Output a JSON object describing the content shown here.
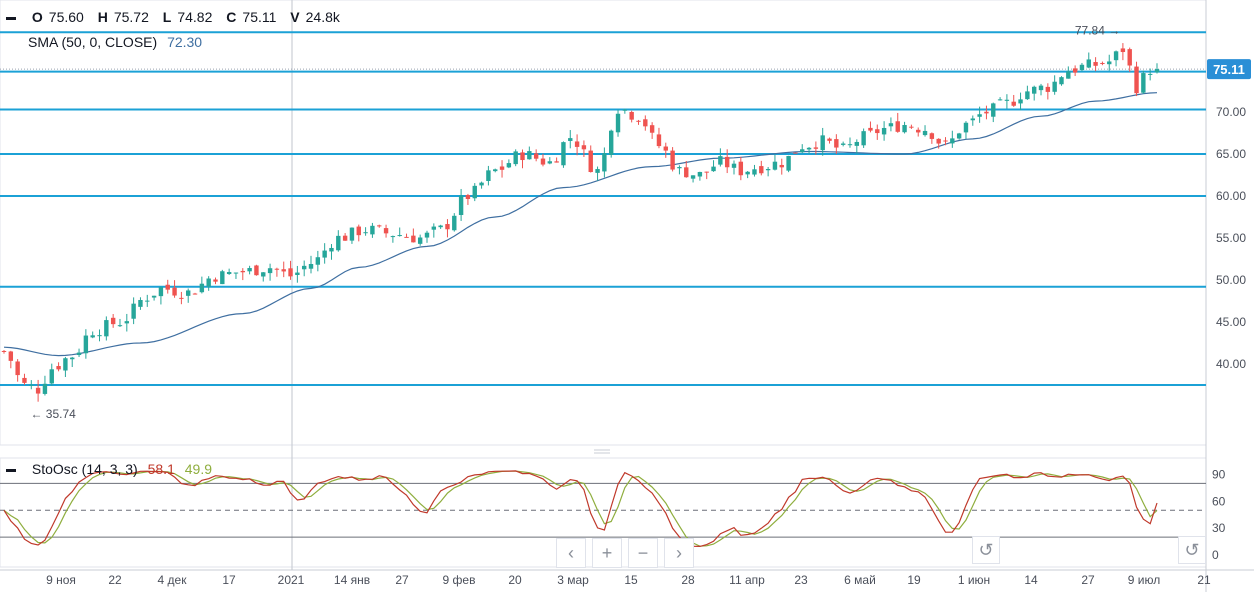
{
  "legend": {
    "ohlc": [
      {
        "key": "O",
        "value": "75.60"
      },
      {
        "key": "H",
        "value": "75.72"
      },
      {
        "key": "L",
        "value": "74.82"
      },
      {
        "key": "C",
        "value": "75.11"
      },
      {
        "key": "V",
        "value": "24.8k"
      }
    ],
    "sma_label": "SMA (50, 0, CLOSE)",
    "sma_value": "72.30",
    "osc_label": "StoOsc (14, 3, 3)",
    "osc_k": "58.1",
    "osc_d": "49.9"
  },
  "colors": {
    "up": "#26a69a",
    "down": "#ef5350",
    "sma": "#3f6fa1",
    "hline": "#1ba1d6",
    "k": "#c0392b",
    "d": "#8fae3e",
    "price_tag": "#2a8fd6"
  },
  "chart_data": [
    {
      "type": "candlestick",
      "title": "",
      "price_axis": {
        "ticks": [
          "40.00",
          "45.00",
          "50.00",
          "55.00",
          "60.00",
          "65.00",
          "70.00"
        ],
        "range": [
          31,
          83
        ]
      },
      "time_axis": [
        "9 ноя",
        "22",
        "4 дек",
        "17",
        "2021",
        "14 янв",
        "27",
        "9 фев",
        "20",
        "3 мар",
        "15",
        "28",
        "11 апр",
        "23",
        "6 май",
        "19",
        "1 июн",
        "14",
        "27",
        "9 июл",
        "21"
      ],
      "last_price": "75.11",
      "max_label": "77.84",
      "min_label": "35.74",
      "horizontal_levels": [
        37.5,
        49.2,
        60.0,
        65.0,
        70.3,
        74.8,
        79.5
      ],
      "close_anchors": [
        [
          0,
          41.5
        ],
        [
          3,
          37.5
        ],
        [
          5,
          37
        ],
        [
          7,
          39.5
        ],
        [
          10,
          41
        ],
        [
          13,
          44
        ],
        [
          17,
          45
        ],
        [
          21,
          48
        ],
        [
          23,
          49
        ],
        [
          27,
          48.5
        ],
        [
          31,
          50.5
        ],
        [
          35,
          51
        ],
        [
          39,
          51.5
        ],
        [
          42,
          50.5
        ],
        [
          45,
          52
        ],
        [
          49,
          55
        ],
        [
          53,
          56
        ],
        [
          57,
          55.5
        ],
        [
          61,
          55
        ],
        [
          64,
          56
        ],
        [
          68,
          60
        ],
        [
          72,
          63
        ],
        [
          76,
          65
        ],
        [
          80,
          64
        ],
        [
          83,
          67
        ],
        [
          87,
          63
        ],
        [
          90,
          70.5
        ],
        [
          93,
          69.5
        ],
        [
          96,
          66
        ],
        [
          99,
          63
        ],
        [
          102,
          62.5
        ],
        [
          105,
          64
        ],
        [
          108,
          63
        ],
        [
          111,
          63.5
        ],
        [
          114,
          64
        ],
        [
          117,
          66
        ],
        [
          120,
          66.5
        ],
        [
          123,
          65.5
        ],
        [
          126,
          67
        ],
        [
          129,
          68
        ],
        [
          132,
          68.5
        ],
        [
          135,
          68
        ],
        [
          138,
          66
        ],
        [
          141,
          68.5
        ],
        [
          144,
          70
        ],
        [
          147,
          71
        ],
        [
          150,
          72.5
        ],
        [
          153,
          73
        ],
        [
          156,
          75
        ],
        [
          159,
          75.5
        ],
        [
          162,
          76
        ],
        [
          164,
          77.5
        ],
        [
          166,
          73
        ],
        [
          168,
          75.11
        ]
      ],
      "sma_anchors": [
        [
          0,
          42
        ],
        [
          8,
          41
        ],
        [
          20,
          42.5
        ],
        [
          35,
          46
        ],
        [
          45,
          49
        ],
        [
          52,
          51.5
        ],
        [
          62,
          54
        ],
        [
          72,
          57.5
        ],
        [
          82,
          61
        ],
        [
          95,
          63.5
        ],
        [
          105,
          64.5
        ],
        [
          118,
          65.3
        ],
        [
          132,
          65
        ],
        [
          142,
          66.8
        ],
        [
          152,
          69.5
        ],
        [
          160,
          71.3
        ],
        [
          169,
          72.3
        ]
      ]
    },
    {
      "type": "line",
      "title": "",
      "y_ticks": [
        "0",
        "30",
        "60",
        "90"
      ],
      "levels": [
        20,
        50,
        80
      ],
      "k_value": "58.1",
      "d_value": "49.9"
    }
  ],
  "controls": {
    "prev": "‹",
    "zoom_in": "+",
    "zoom_out": "−",
    "next": "›",
    "reset": "↺"
  }
}
